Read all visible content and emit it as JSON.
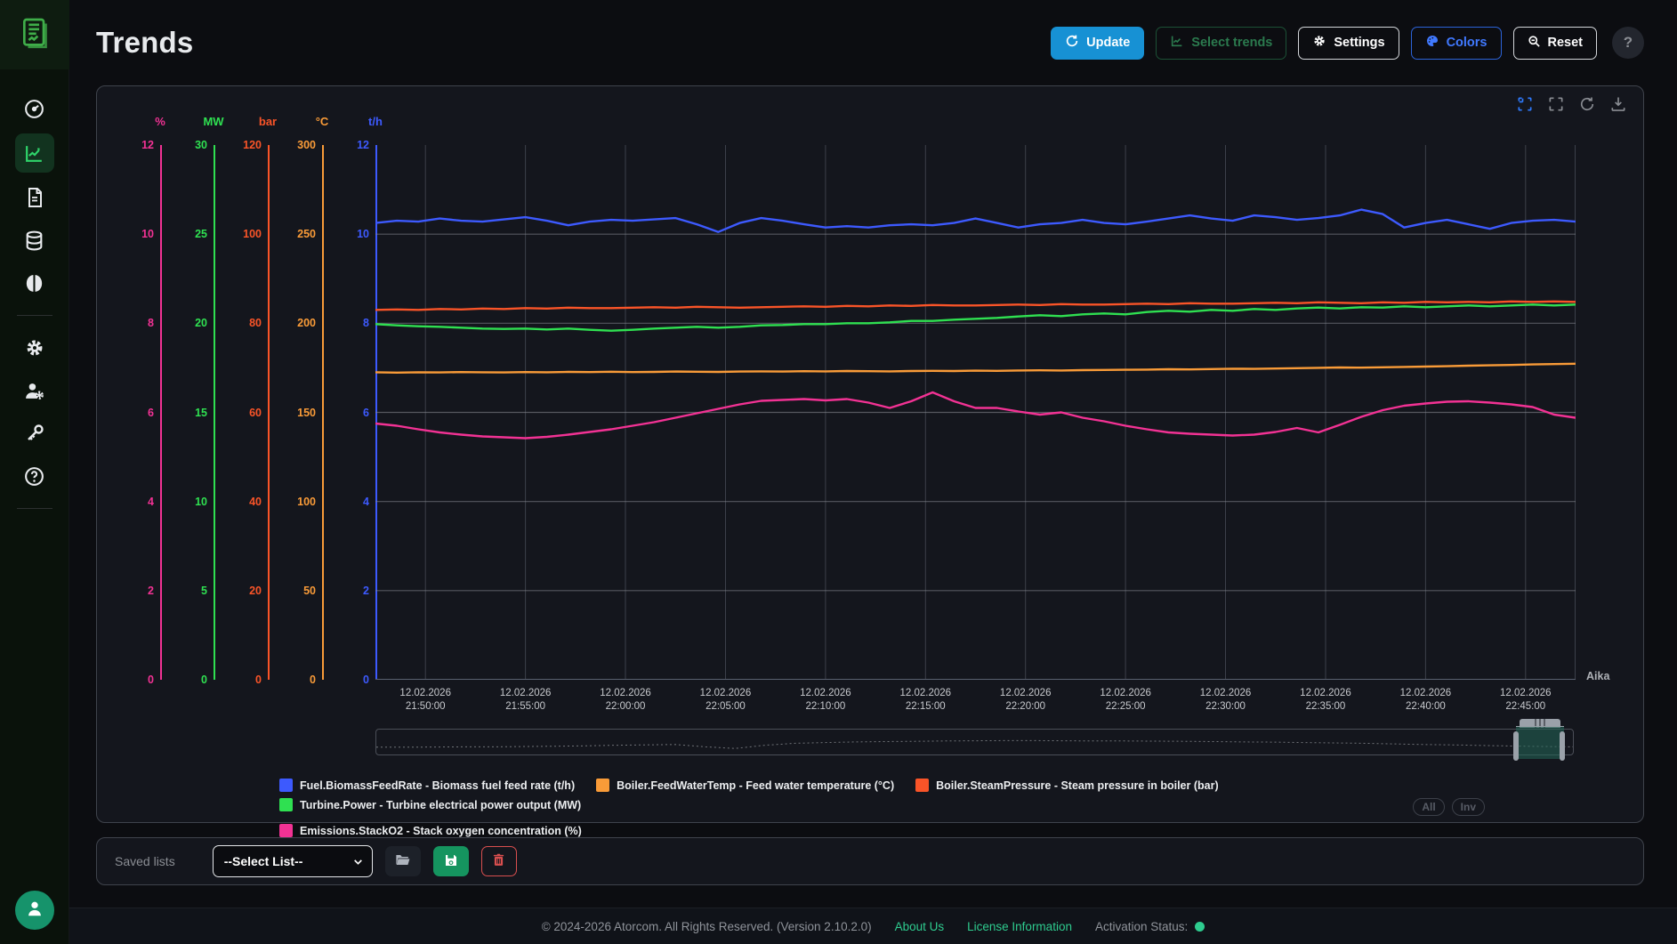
{
  "app": {
    "title": "Trends"
  },
  "header": {
    "update_label": "Update",
    "select_trends_label": "Select trends",
    "settings_label": "Settings",
    "colors_label": "Colors",
    "reset_label": "Reset",
    "help_glyph": "?"
  },
  "icons": {
    "logo": "journal-chart",
    "sidebar": [
      "gauge",
      "trend-chart",
      "document",
      "database",
      "brain",
      "gear",
      "user-gear",
      "key",
      "help-circle"
    ],
    "chart_toolbar": [
      "zoom-box",
      "reset-zoom-box",
      "refresh",
      "download"
    ],
    "saved_bar": [
      "folder-open",
      "floppy-save",
      "trash"
    ]
  },
  "controls": {
    "all_label": "All",
    "inv_label": "Inv"
  },
  "saved_lists": {
    "label": "Saved lists",
    "select_value": "--Select List--"
  },
  "footer": {
    "copyright": "© 2024-2026 Atorcom. All Rights Reserved. (Version 2.10.2.0)",
    "about": "About Us",
    "license": "License Information",
    "activation": "Activation Status:"
  },
  "colors": {
    "accent_blue": "#1791d4",
    "status_green": "#2ecc8f",
    "active_sidebar": "#2fd56b",
    "series_biomass": "#3d5afe",
    "series_feedwater": "#f99b38",
    "series_pressure": "#f95428",
    "series_power": "#2fe051",
    "series_o2": "#f23294"
  },
  "chart_data": {
    "type": "line",
    "x_axis_label": "Aika",
    "x_domain": [
      "12.02.2026 21:47:30",
      "12.02.2026 22:47:30"
    ],
    "x_ticks": [
      {
        "date": "12.02.2026",
        "time": "21:50:00"
      },
      {
        "date": "12.02.2026",
        "time": "21:55:00"
      },
      {
        "date": "12.02.2026",
        "time": "22:00:00"
      },
      {
        "date": "12.02.2026",
        "time": "22:05:00"
      },
      {
        "date": "12.02.2026",
        "time": "22:10:00"
      },
      {
        "date": "12.02.2026",
        "time": "22:15:00"
      },
      {
        "date": "12.02.2026",
        "time": "22:20:00"
      },
      {
        "date": "12.02.2026",
        "time": "22:25:00"
      },
      {
        "date": "12.02.2026",
        "time": "22:30:00"
      },
      {
        "date": "12.02.2026",
        "time": "22:35:00"
      },
      {
        "date": "12.02.2026",
        "time": "22:40:00"
      },
      {
        "date": "12.02.2026",
        "time": "22:45:00"
      }
    ],
    "grid": true,
    "legend_position": "bottom",
    "axes": [
      {
        "unit": "%",
        "color": "#f23294",
        "min": 0,
        "max": 12,
        "ticks": [
          12,
          10,
          8,
          6,
          4,
          2,
          0
        ]
      },
      {
        "unit": "MW",
        "color": "#2fe051",
        "min": 0,
        "max": 30,
        "ticks": [
          30,
          25,
          20,
          15,
          10,
          5,
          0
        ]
      },
      {
        "unit": "bar",
        "color": "#f95428",
        "min": 0,
        "max": 120,
        "ticks": [
          120,
          100,
          80,
          60,
          40,
          20,
          0
        ]
      },
      {
        "unit": "°C",
        "color": "#f99b38",
        "min": 0,
        "max": 300,
        "ticks": [
          300,
          250,
          200,
          150,
          100,
          50,
          0
        ]
      },
      {
        "unit": "t/h",
        "color": "#3d5afe",
        "min": 0,
        "max": 12,
        "ticks": [
          12,
          10,
          8,
          6,
          4,
          2,
          0
        ]
      }
    ],
    "series": [
      {
        "name": "Fuel.BiomassFeedRate",
        "label": "Fuel.BiomassFeedRate - Biomass fuel feed rate (t/h)",
        "unit": "t/h",
        "axis_max": 12,
        "color": "#3d5afe",
        "values": [
          10.25,
          10.3,
          10.28,
          10.35,
          10.3,
          10.28,
          10.33,
          10.38,
          10.3,
          10.2,
          10.28,
          10.32,
          10.3,
          10.33,
          10.36,
          10.22,
          10.05,
          10.25,
          10.36,
          10.3,
          10.22,
          10.15,
          10.18,
          10.15,
          10.2,
          10.22,
          10.2,
          10.25,
          10.35,
          10.25,
          10.15,
          10.22,
          10.25,
          10.32,
          10.25,
          10.22,
          10.28,
          10.35,
          10.42,
          10.35,
          10.3,
          10.42,
          10.38,
          10.32,
          10.36,
          10.42,
          10.55,
          10.45,
          10.15,
          10.25,
          10.32,
          10.22,
          10.12,
          10.25,
          10.3,
          10.32,
          10.28
        ]
      },
      {
        "name": "Boiler.FeedWaterTemp",
        "label": "Boiler.FeedWaterTemp - Feed water temperature (°C)",
        "unit": "°C",
        "axis_max": 300,
        "color": "#f99b38",
        "values": [
          172.5,
          172.3,
          172.5,
          172.4,
          172.6,
          172.5,
          172.4,
          172.6,
          172.5,
          172.7,
          172.6,
          172.8,
          172.6,
          172.7,
          172.9,
          172.8,
          172.7,
          172.9,
          173.0,
          172.9,
          173.1,
          173.0,
          173.2,
          173.1,
          173.0,
          173.2,
          173.3,
          173.2,
          173.4,
          173.3,
          173.5,
          173.6,
          173.5,
          173.7,
          173.8,
          173.9,
          174.0,
          174.2,
          174.1,
          174.3,
          174.5,
          174.4,
          174.6,
          174.8,
          175.0,
          175.2,
          175.1,
          175.3,
          175.5,
          175.7,
          175.9,
          176.2,
          176.4,
          176.6,
          176.9,
          177.1,
          177.3
        ]
      },
      {
        "name": "Boiler.SteamPressure",
        "label": "Boiler.SteamPressure - Steam pressure in boiler (bar)",
        "unit": "bar",
        "axis_max": 120,
        "color": "#f95428",
        "values": [
          83.0,
          83.1,
          83.0,
          83.2,
          83.1,
          83.3,
          83.2,
          83.4,
          83.3,
          83.5,
          83.4,
          83.4,
          83.5,
          83.6,
          83.5,
          83.7,
          83.6,
          83.5,
          83.6,
          83.7,
          83.8,
          83.7,
          83.9,
          83.8,
          84.0,
          83.9,
          84.1,
          84.0,
          84.0,
          84.1,
          84.2,
          84.1,
          84.3,
          84.2,
          84.2,
          84.3,
          84.4,
          84.3,
          84.5,
          84.4,
          84.4,
          84.5,
          84.6,
          84.5,
          84.7,
          84.6,
          84.5,
          84.7,
          84.6,
          84.8,
          84.7,
          84.8,
          84.7,
          84.9,
          84.8,
          84.9,
          84.8
        ]
      },
      {
        "name": "Turbine.Power",
        "label": "Turbine.Power - Turbine electrical power output (MW)",
        "unit": "MW",
        "axis_max": 30,
        "color": "#2fe051",
        "values": [
          19.95,
          19.88,
          19.83,
          19.8,
          19.75,
          19.7,
          19.68,
          19.7,
          19.65,
          19.7,
          19.63,
          19.58,
          19.63,
          19.7,
          19.75,
          19.8,
          19.75,
          19.8,
          19.88,
          19.9,
          19.95,
          19.95,
          20.0,
          20.0,
          20.05,
          20.13,
          20.13,
          20.2,
          20.25,
          20.3,
          20.38,
          20.45,
          20.4,
          20.5,
          20.55,
          20.5,
          20.63,
          20.7,
          20.65,
          20.75,
          20.7,
          20.8,
          20.75,
          20.83,
          20.88,
          20.83,
          20.9,
          20.88,
          20.95,
          20.9,
          20.95,
          21.0,
          20.95,
          21.0,
          21.05,
          21.0,
          21.05
        ]
      },
      {
        "name": "Emissions.StackO2",
        "label": "Emissions.StackO2 - Stack oxygen concentration (%)",
        "unit": "%",
        "axis_max": 12,
        "color": "#f23294",
        "values": [
          5.75,
          5.7,
          5.62,
          5.55,
          5.5,
          5.46,
          5.44,
          5.42,
          5.45,
          5.5,
          5.56,
          5.62,
          5.7,
          5.78,
          5.88,
          5.98,
          6.08,
          6.18,
          6.26,
          6.28,
          6.3,
          6.27,
          6.3,
          6.22,
          6.1,
          6.25,
          6.45,
          6.25,
          6.1,
          6.1,
          6.02,
          5.95,
          6.0,
          5.88,
          5.8,
          5.7,
          5.62,
          5.55,
          5.52,
          5.5,
          5.48,
          5.5,
          5.56,
          5.65,
          5.55,
          5.72,
          5.9,
          6.05,
          6.15,
          6.2,
          6.24,
          6.25,
          6.22,
          6.18,
          6.12,
          5.95,
          5.88
        ]
      }
    ],
    "navigator": {
      "values": [
        0.28,
        0.28,
        0.29,
        0.3,
        0.3,
        0.32,
        0.33,
        0.35,
        0.38,
        0.4,
        0.42,
        0.3,
        0.22,
        0.38,
        0.48,
        0.52,
        0.55,
        0.57,
        0.58,
        0.6,
        0.61,
        0.62,
        0.62,
        0.61,
        0.6,
        0.6,
        0.59,
        0.58,
        0.57,
        0.55,
        0.54,
        0.52,
        0.5,
        0.48,
        0.45,
        0.42,
        0.4,
        0.37,
        0.34,
        0.32,
        0.3
      ],
      "selection": "right-end"
    }
  }
}
